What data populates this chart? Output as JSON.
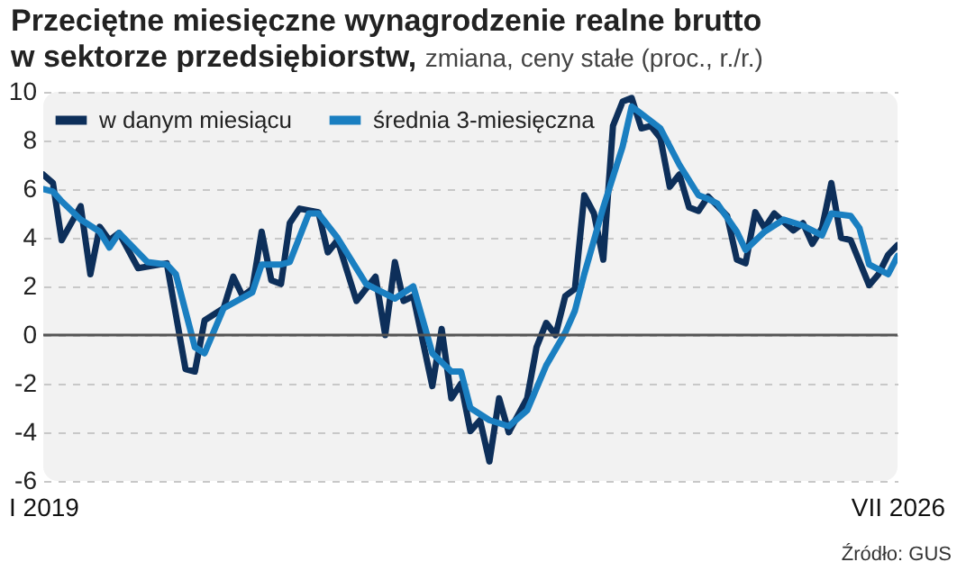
{
  "chart_data": {
    "type": "line",
    "title": "Przeciętne miesięczne wynagrodzenie realne brutto w sektorze przedsiębiorstw,",
    "subtitle": "zmiana, ceny stałe (proc., r./r.)",
    "xlim": [
      "2019-01",
      "2026-07"
    ],
    "xticks": [
      {
        "value": "2019-01",
        "label": "I 2019"
      },
      {
        "value": "2026-07",
        "label": "VII 2026"
      }
    ],
    "ylim": [
      -6,
      10
    ],
    "yticks": [
      -6,
      -4,
      -2,
      0,
      2,
      4,
      6,
      8,
      10
    ],
    "grid": "y",
    "legend": "top left",
    "ref_lines": [
      {
        "axis": "y",
        "value": 0,
        "label": null,
        "color": "#555555"
      }
    ],
    "annotations": [
      "Źródło: GUS"
    ],
    "series": [
      {
        "name": "w danym miesiącu",
        "color": "#0d2f5a",
        "x": [
          "2019-01",
          "2019-02",
          "2019-03",
          "2019-05",
          "2019-06",
          "2019-07",
          "2019-08",
          "2019-09",
          "2019-11",
          "2020-02",
          "2020-04",
          "2020-05",
          "2020-06",
          "2020-08",
          "2020-09",
          "2020-10",
          "2020-11",
          "2020-12",
          "2021-01",
          "2021-02",
          "2021-03",
          "2021-04",
          "2021-06",
          "2021-07",
          "2021-08",
          "2021-10",
          "2021-12",
          "2022-01",
          "2022-02",
          "2022-03",
          "2022-04",
          "2022-06",
          "2022-07",
          "2022-08",
          "2022-09",
          "2022-10",
          "2022-11",
          "2022-12",
          "2023-01",
          "2023-02",
          "2023-04",
          "2023-05",
          "2023-06",
          "2023-07",
          "2023-08",
          "2023-09",
          "2023-10",
          "2023-11",
          "2023-12",
          "2024-01",
          "2024-02",
          "2024-03",
          "2024-04",
          "2024-05",
          "2024-06",
          "2024-07",
          "2024-08",
          "2024-09",
          "2024-10",
          "2024-11",
          "2025-01",
          "2025-02",
          "2025-03",
          "2025-04",
          "2025-05",
          "2025-06",
          "2025-08",
          "2025-09",
          "2025-10",
          "2025-11",
          "2025-12",
          "2026-01",
          "2026-02",
          "2026-04",
          "2026-05",
          "2026-06",
          "2026-07"
        ],
        "values": [
          6.6,
          6.25,
          3.9,
          5.3,
          2.5,
          4.45,
          3.9,
          4.2,
          2.75,
          2.95,
          -1.4,
          -1.5,
          0.6,
          1.1,
          2.4,
          1.6,
          1.9,
          4.25,
          2.25,
          2.1,
          4.6,
          5.2,
          5.05,
          3.4,
          3.9,
          1.4,
          2.4,
          0,
          3.0,
          1.4,
          1.6,
          -2.1,
          0.25,
          -2.6,
          -2.0,
          -3.95,
          -3.5,
          -5.2,
          -2.6,
          -4.0,
          -2.6,
          -0.5,
          0.5,
          0,
          1.6,
          1.9,
          5.75,
          5.0,
          3.1,
          8.6,
          9.6,
          9.75,
          8.5,
          8.6,
          8.1,
          6.1,
          6.6,
          5.25,
          5.1,
          5.7,
          4.9,
          3.1,
          2.95,
          5.05,
          4.4,
          5.0,
          4.3,
          4.6,
          3.75,
          4.4,
          6.25,
          4.0,
          3.9,
          2.05,
          2.5,
          3.3,
          3.7
        ]
      },
      {
        "name": "średnia 3-miesięczna",
        "color": "#1a7fc1",
        "x": [
          "2019-01",
          "2019-02",
          "2019-03",
          "2019-05",
          "2019-07",
          "2019-08",
          "2019-09",
          "2019-12",
          "2020-02",
          "2020-03",
          "2020-05",
          "2020-06",
          "2020-08",
          "2020-11",
          "2020-12",
          "2021-02",
          "2021-03",
          "2021-05",
          "2021-06",
          "2021-08",
          "2021-11",
          "2021-12",
          "2022-02",
          "2022-04",
          "2022-06",
          "2022-08",
          "2022-09",
          "2022-10",
          "2022-12",
          "2023-02",
          "2023-04",
          "2023-06",
          "2023-08",
          "2023-09",
          "2023-10",
          "2023-12",
          "2024-02",
          "2024-03",
          "2024-04",
          "2024-06",
          "2024-08",
          "2024-10",
          "2024-11",
          "2024-12",
          "2025-02",
          "2025-03",
          "2025-05",
          "2025-07",
          "2025-09",
          "2025-11",
          "2025-12",
          "2026-02",
          "2026-03",
          "2026-04",
          "2026-06",
          "2026-07"
        ],
        "values": [
          6.0,
          5.9,
          5.5,
          4.75,
          4.25,
          3.6,
          4.2,
          3.0,
          2.9,
          2.5,
          -0.5,
          -0.75,
          1.1,
          1.75,
          2.9,
          2.9,
          3.0,
          5.0,
          5.0,
          4.0,
          2.1,
          1.9,
          1.5,
          2.0,
          -0.75,
          -1.5,
          -1.5,
          -3.0,
          -3.5,
          -3.75,
          -3.1,
          -1.25,
          0.1,
          1.0,
          2.5,
          5.25,
          7.75,
          9.4,
          9.1,
          8.5,
          7.0,
          5.75,
          5.6,
          5.4,
          4.25,
          3.5,
          4.25,
          4.75,
          4.5,
          4.1,
          5.0,
          4.9,
          4.4,
          2.9,
          2.5,
          3.25
        ]
      }
    ]
  }
}
